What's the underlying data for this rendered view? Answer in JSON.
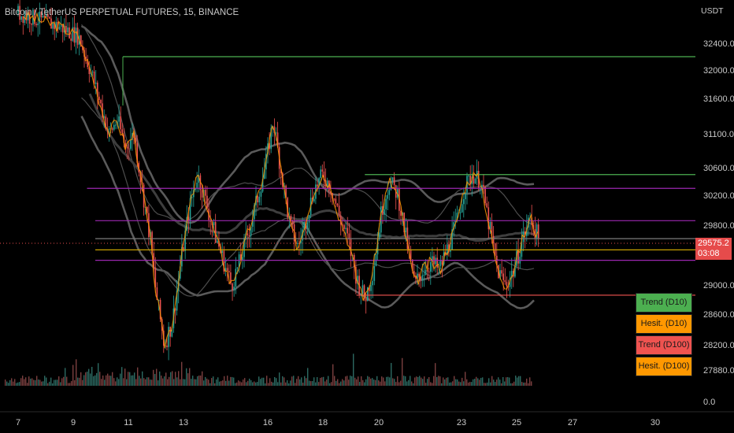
{
  "header": {
    "title": "Bitcoin / TetherUS PERPETUAL FUTURES, 15, BINANCE"
  },
  "chart_data": {
    "type": "line",
    "title": "Bitcoin / TetherUS PERPETUAL FUTURES, 15, BINANCE",
    "y_unit": "USDT",
    "y_ticks": [
      32400,
      32000,
      31600,
      31100,
      30600,
      30200,
      29800,
      29000,
      28600,
      28200,
      27880,
      0
    ],
    "y_tick_labels": [
      "32400.0",
      "32000.0",
      "31600.0",
      "31100.0",
      "30600.0",
      "30200.0",
      "29800.0",
      "29000.0",
      "28600.0",
      "28200.0",
      "27880.0",
      "0.0"
    ],
    "x_tick_labels": [
      "7",
      "9",
      "11",
      "13",
      "16",
      "18",
      "20",
      "23",
      "25",
      "27",
      "30"
    ],
    "last_price": "29575.2",
    "countdown": "03:08",
    "grid": false,
    "price_series": [
      [
        7.0,
        32850
      ],
      [
        8.5,
        32650
      ],
      [
        9.2,
        32500
      ],
      [
        9.7,
        31900
      ],
      [
        10.0,
        31500
      ],
      [
        10.3,
        31100
      ],
      [
        10.6,
        31300
      ],
      [
        10.9,
        30900
      ],
      [
        11.2,
        31100
      ],
      [
        11.5,
        30300
      ],
      [
        11.8,
        29600
      ],
      [
        12.0,
        28900
      ],
      [
        12.3,
        28200
      ],
      [
        12.6,
        28500
      ],
      [
        12.9,
        29300
      ],
      [
        13.2,
        30000
      ],
      [
        13.5,
        30500
      ],
      [
        13.8,
        30100
      ],
      [
        14.1,
        29700
      ],
      [
        14.4,
        29350
      ],
      [
        14.7,
        29000
      ],
      [
        15.0,
        29300
      ],
      [
        15.3,
        29700
      ],
      [
        15.6,
        30100
      ],
      [
        15.9,
        30600
      ],
      [
        16.2,
        31300
      ],
      [
        16.5,
        30500
      ],
      [
        16.8,
        29800
      ],
      [
        17.1,
        29500
      ],
      [
        17.4,
        29900
      ],
      [
        17.7,
        30300
      ],
      [
        18.0,
        30500
      ],
      [
        18.3,
        30300
      ],
      [
        18.6,
        29900
      ],
      [
        18.9,
        29600
      ],
      [
        19.2,
        29100
      ],
      [
        19.5,
        28800
      ],
      [
        19.8,
        29200
      ],
      [
        20.1,
        30000
      ],
      [
        20.4,
        30400
      ],
      [
        20.7,
        30200
      ],
      [
        21.0,
        29600
      ],
      [
        21.3,
        29000
      ],
      [
        21.6,
        29200
      ],
      [
        21.9,
        29300
      ],
      [
        22.2,
        29200
      ],
      [
        22.5,
        29500
      ],
      [
        22.8,
        29800
      ],
      [
        23.1,
        30300
      ],
      [
        23.4,
        30500
      ],
      [
        23.7,
        30400
      ],
      [
        24.0,
        29800
      ],
      [
        24.3,
        29200
      ],
      [
        24.6,
        29000
      ],
      [
        24.9,
        29200
      ],
      [
        25.2,
        29600
      ],
      [
        25.5,
        29900
      ],
      [
        25.8,
        29600
      ]
    ],
    "horizontal_lines": [
      {
        "price": 32200,
        "from": 10.8,
        "to": 31.5,
        "color": "#4caf50"
      },
      {
        "price": 30500,
        "from": 19.5,
        "to": 31.5,
        "color": "#4caf50"
      },
      {
        "price": 30300,
        "from": 9.5,
        "to": 31.5,
        "color": "#9c27b0"
      },
      {
        "price": 29860,
        "from": 9.8,
        "to": 31.5,
        "color": "#9c27b0"
      },
      {
        "price": 29620,
        "from": 9.8,
        "to": 31.5,
        "color": "#7b7b7b"
      },
      {
        "price": 29470,
        "from": 9.8,
        "to": 31.5,
        "color": "#c8a000"
      },
      {
        "price": 29330,
        "from": 9.8,
        "to": 31.5,
        "color": "#9c27b0"
      },
      {
        "price": 28860,
        "from": 19.2,
        "to": 31.5,
        "color": "#ef5350"
      }
    ],
    "colors": {
      "up": "#26a69a",
      "down": "#ef5350",
      "ma_fast": "#ff9800",
      "band": "#5a5a5a"
    },
    "legend": [
      {
        "label": "Trend (D10)",
        "color": "#4caf50"
      },
      {
        "label": "Hesit. (D10)",
        "color": "#ff9800"
      },
      {
        "label": "Trend (D100)",
        "color": "#ef5350"
      },
      {
        "label": "Hesit. (D100)",
        "color": "#ff9800"
      }
    ]
  }
}
